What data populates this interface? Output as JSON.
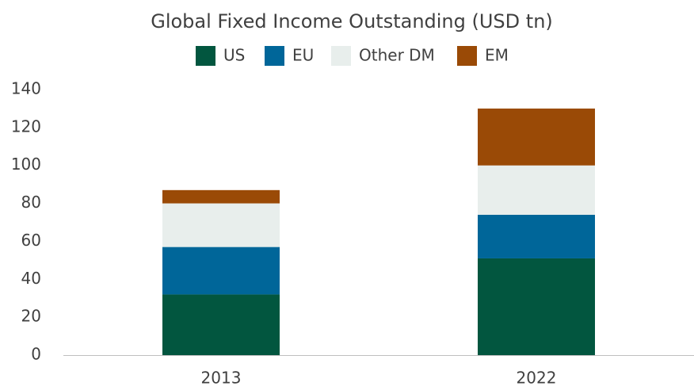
{
  "chart_data": {
    "type": "stacked_bar",
    "title": "Global Fixed Income Outstanding (USD tn)",
    "categories": [
      "2013",
      "2022"
    ],
    "series": [
      {
        "name": "US",
        "color": "#02563f",
        "values": [
          32,
          51
        ]
      },
      {
        "name": "EU",
        "color": "#006699",
        "values": [
          25,
          23
        ]
      },
      {
        "name": "Other DM",
        "color": "#e8eeec",
        "values": [
          23,
          26
        ]
      },
      {
        "name": "EM",
        "color": "#9a4a06",
        "values": [
          7,
          30
        ]
      }
    ],
    "ylim": [
      0,
      140
    ],
    "yticks": [
      0,
      20,
      40,
      60,
      80,
      100,
      120,
      140
    ],
    "grid": false,
    "legend": "top"
  }
}
